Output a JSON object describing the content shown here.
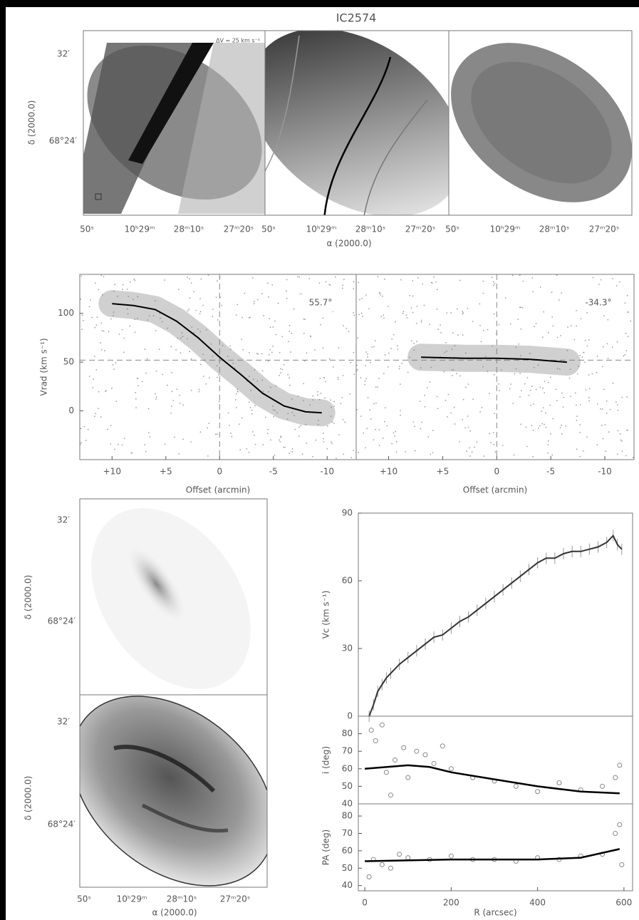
{
  "title": "IC2574",
  "maps": {
    "x_tick_labels": [
      "50ˢ",
      "10ʰ29ᵐ",
      "28ᵐ10ˢ",
      "27ᵐ20ˢ"
    ],
    "y_tick_labels": [
      "32′",
      "68°24′"
    ],
    "x_label": "α (2000.0)",
    "y_label": "δ (2000.0)",
    "velocity_step": "ΔV = 25 km s⁻¹"
  },
  "chart_data": [
    {
      "type": "line",
      "x": [
        10,
        8,
        6,
        4,
        2,
        0,
        -2,
        -4,
        -6,
        -8,
        -9.5
      ],
      "values": [
        110,
        108,
        104,
        92,
        75,
        55,
        37,
        18,
        5,
        -1,
        -2
      ],
      "xlim": [
        13,
        -12.7
      ],
      "ylim": [
        -50,
        140
      ],
      "xticks": [
        {
          "value": 10,
          "label": "+10"
        },
        {
          "value": 5,
          "label": "+5"
        },
        0,
        -5,
        -10
      ],
      "yticks": [
        0,
        50,
        100
      ],
      "xlabel": "Offset (arcmin)",
      "ylabel": "Vrad (km s⁻¹)",
      "annotation": "55.7°",
      "ref_x": 0,
      "ref_y": 52,
      "color": "#000000"
    },
    {
      "type": "line",
      "x": [
        7,
        3,
        0,
        -3,
        -6.5
      ],
      "values": [
        55,
        54,
        54,
        53,
        50
      ],
      "xlim": [
        13,
        -12.7
      ],
      "ylim": [
        -50,
        140
      ],
      "xticks": [
        {
          "value": 10,
          "label": "+10"
        },
        {
          "value": 5,
          "label": "+5"
        },
        0,
        -5,
        -10
      ],
      "xlabel": "Offset (arcmin)",
      "annotation": "-34.3°",
      "ref_x": 0,
      "ref_y": 52,
      "color": "#000000"
    },
    {
      "type": "line",
      "x": [
        10,
        20,
        30,
        40,
        50,
        60,
        80,
        100,
        120,
        140,
        160,
        180,
        200,
        220,
        240,
        260,
        280,
        300,
        320,
        340,
        360,
        380,
        400,
        420,
        440,
        460,
        480,
        500,
        520,
        540,
        560,
        575,
        585,
        595
      ],
      "values": [
        0,
        5,
        11,
        14,
        17,
        19,
        23,
        26,
        29,
        32,
        35,
        36,
        39,
        42,
        44,
        47,
        50,
        53,
        56,
        59,
        62,
        65,
        68,
        70,
        70,
        72,
        73,
        73,
        74,
        75,
        77,
        80,
        76,
        74
      ],
      "xlim": [
        -15,
        620
      ],
      "ylim": [
        0,
        90
      ],
      "yticks": [
        0,
        30,
        60,
        90
      ],
      "ylabel": "Vc (km s⁻¹)",
      "color": "#333333"
    },
    {
      "type": "scatter",
      "x": [
        15,
        25,
        40,
        50,
        60,
        70,
        90,
        100,
        120,
        140,
        160,
        180,
        200,
        250,
        300,
        350,
        400,
        450,
        500,
        550,
        580,
        590
      ],
      "values": [
        82,
        76,
        85,
        58,
        45,
        65,
        72,
        55,
        70,
        68,
        63,
        73,
        60,
        55,
        53,
        50,
        47,
        52,
        48,
        50,
        55,
        62
      ],
      "fit": {
        "x": [
          0,
          100,
          150,
          200,
          300,
          400,
          500,
          590
        ],
        "values": [
          60,
          62,
          61,
          58,
          54,
          50,
          47,
          46
        ]
      },
      "xlim": [
        -15,
        620
      ],
      "ylim": [
        40,
        90
      ],
      "yticks": [
        40,
        50,
        60,
        70,
        80
      ],
      "ylabel": "i (deg)",
      "color": "#888888"
    },
    {
      "type": "scatter",
      "x": [
        10,
        20,
        40,
        60,
        80,
        100,
        150,
        200,
        250,
        300,
        350,
        400,
        450,
        500,
        550,
        580,
        590,
        595
      ],
      "values": [
        45,
        55,
        52,
        50,
        58,
        56,
        55,
        57,
        55,
        55,
        54,
        56,
        55,
        57,
        58,
        70,
        75,
        52
      ],
      "fit": {
        "x": [
          0,
          200,
          400,
          500,
          590
        ],
        "values": [
          54,
          55,
          55,
          56,
          61
        ]
      },
      "xlim": [
        -15,
        620
      ],
      "ylim": [
        37,
        87
      ],
      "yticks": [
        40,
        50,
        60,
        70,
        80
      ],
      "xticks": [
        0,
        200,
        400,
        600
      ],
      "xlabel": "R (arcsec)",
      "ylabel": "PA (deg)",
      "color": "#888888"
    }
  ]
}
